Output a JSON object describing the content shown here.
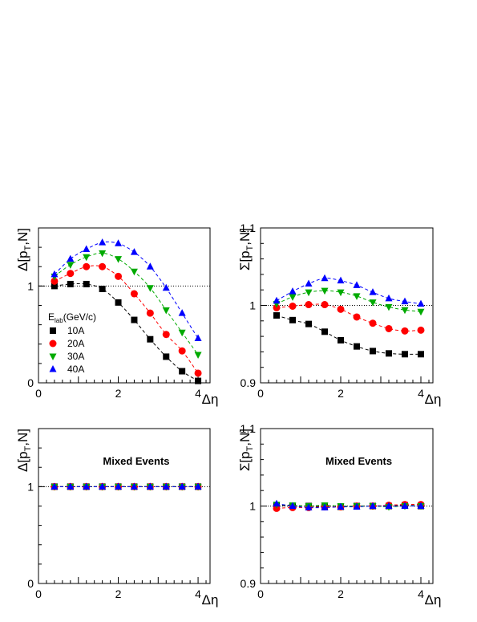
{
  "chart_data": [
    {
      "type": "scatter",
      "panel": "top-left",
      "xlabel": "Δη",
      "ylabel": "Δ[pT,N]",
      "xlim": [
        0,
        4.3
      ],
      "ylim": [
        0,
        1.6
      ],
      "xticks": [
        0,
        2,
        4
      ],
      "yticks": [
        0,
        1
      ],
      "reference_line": 1,
      "legend_title": "Elab(GeV/c)",
      "legend_position": "center-left",
      "x": [
        0.4,
        0.8,
        1.2,
        1.6,
        2.0,
        2.4,
        2.8,
        3.2,
        3.6,
        4.0
      ],
      "series": [
        {
          "name": "10A",
          "color": "#000000",
          "marker": "square",
          "values": [
            1.0,
            1.02,
            1.02,
            0.97,
            0.83,
            0.65,
            0.45,
            0.27,
            0.12,
            0.02
          ]
        },
        {
          "name": "20A",
          "color": "#ff0000",
          "marker": "circle",
          "values": [
            1.05,
            1.13,
            1.2,
            1.2,
            1.1,
            0.92,
            0.72,
            0.5,
            0.33,
            0.1
          ]
        },
        {
          "name": "30A",
          "color": "#00aa00",
          "marker": "triangle-down",
          "values": [
            1.1,
            1.22,
            1.3,
            1.34,
            1.28,
            1.15,
            0.98,
            0.75,
            0.52,
            0.29
          ]
        },
        {
          "name": "40A",
          "color": "#0000ff",
          "marker": "triangle-up",
          "values": [
            1.12,
            1.28,
            1.38,
            1.45,
            1.44,
            1.35,
            1.2,
            0.98,
            0.72,
            0.46
          ]
        }
      ]
    },
    {
      "type": "scatter",
      "panel": "top-right",
      "xlabel": "Δη",
      "ylabel": "Σ[pT,N]",
      "xlim": [
        0,
        4.3
      ],
      "ylim": [
        0.9,
        1.1
      ],
      "xticks": [
        0,
        2,
        4
      ],
      "yticks": [
        0.9,
        1,
        1.1
      ],
      "reference_line": 1,
      "x": [
        0.4,
        0.8,
        1.2,
        1.6,
        2.0,
        2.4,
        2.8,
        3.2,
        3.6,
        4.0
      ],
      "series": [
        {
          "name": "10A",
          "color": "#000000",
          "marker": "square",
          "values": [
            0.987,
            0.981,
            0.976,
            0.966,
            0.955,
            0.947,
            0.941,
            0.938,
            0.937,
            0.937
          ]
        },
        {
          "name": "20A",
          "color": "#ff0000",
          "marker": "circle",
          "values": [
            0.997,
            0.999,
            1.001,
            1.001,
            0.995,
            0.985,
            0.977,
            0.97,
            0.967,
            0.968
          ]
        },
        {
          "name": "30A",
          "color": "#00aa00",
          "marker": "triangle-down",
          "values": [
            1.002,
            1.011,
            1.017,
            1.019,
            1.017,
            1.012,
            1.004,
            0.998,
            0.994,
            0.992
          ]
        },
        {
          "name": "40A",
          "color": "#0000ff",
          "marker": "triangle-up",
          "values": [
            1.006,
            1.018,
            1.028,
            1.035,
            1.032,
            1.026,
            1.017,
            1.009,
            1.005,
            1.002
          ]
        }
      ]
    },
    {
      "type": "scatter",
      "panel": "bottom-left",
      "xlabel": "Δη",
      "ylabel": "Δ[pT,N]",
      "xlim": [
        0,
        4.3
      ],
      "ylim": [
        0,
        1.6
      ],
      "xticks": [
        0,
        2,
        4
      ],
      "yticks": [
        0,
        1
      ],
      "reference_line": 1,
      "annotation": "Mixed Events",
      "x": [
        0.4,
        0.8,
        1.2,
        1.6,
        2.0,
        2.4,
        2.8,
        3.2,
        3.6,
        4.0
      ],
      "series": [
        {
          "name": "10A",
          "color": "#000000",
          "marker": "square",
          "values": [
            1.0,
            1.0,
            1.0,
            1.0,
            1.0,
            1.0,
            1.0,
            1.0,
            1.0,
            1.0
          ]
        },
        {
          "name": "20A",
          "color": "#ff0000",
          "marker": "circle",
          "values": [
            1.0,
            1.0,
            1.0,
            1.0,
            1.0,
            1.0,
            1.0,
            1.0,
            1.0,
            1.0
          ]
        },
        {
          "name": "30A",
          "color": "#00aa00",
          "marker": "triangle-down",
          "values": [
            1.0,
            1.0,
            1.0,
            1.0,
            1.0,
            1.0,
            1.0,
            1.0,
            1.0,
            1.0
          ]
        },
        {
          "name": "40A",
          "color": "#0000ff",
          "marker": "triangle-up",
          "values": [
            1.0,
            1.0,
            1.0,
            1.0,
            1.0,
            1.0,
            1.0,
            1.0,
            1.0,
            1.0
          ]
        }
      ]
    },
    {
      "type": "scatter",
      "panel": "bottom-right",
      "xlabel": "Δη",
      "ylabel": "Σ[pT,N]",
      "xlim": [
        0,
        4.3
      ],
      "ylim": [
        0.9,
        1.1
      ],
      "xticks": [
        0,
        2,
        4
      ],
      "yticks": [
        0.9,
        1,
        1.1
      ],
      "reference_line": 1,
      "annotation": "Mixed Events",
      "x": [
        0.4,
        0.8,
        1.2,
        1.6,
        2.0,
        2.4,
        2.8,
        3.2,
        3.6,
        4.0
      ],
      "series": [
        {
          "name": "10A",
          "color": "#000000",
          "marker": "square",
          "values": [
            1.001,
            1.0,
            1.0,
            0.999,
            0.999,
            1.0,
            1.0,
            1.0,
            1.001,
            1.0
          ]
        },
        {
          "name": "20A",
          "color": "#ff0000",
          "marker": "circle",
          "values": [
            0.997,
            0.998,
            0.998,
            0.999,
            0.999,
            1.0,
            1.0,
            1.001,
            1.002,
            1.002
          ]
        },
        {
          "name": "30A",
          "color": "#00aa00",
          "marker": "triangle-down",
          "values": [
            1.002,
            1.001,
            1.0,
            1.001,
            1.0,
            1.0,
            1.0,
            0.999,
            1.0,
            1.0
          ]
        },
        {
          "name": "40A",
          "color": "#0000ff",
          "marker": "triangle-up",
          "values": [
            1.003,
            1.0,
            0.998,
            0.998,
            0.999,
            0.999,
            1.0,
            1.0,
            1.0,
            1.0
          ]
        }
      ]
    }
  ]
}
